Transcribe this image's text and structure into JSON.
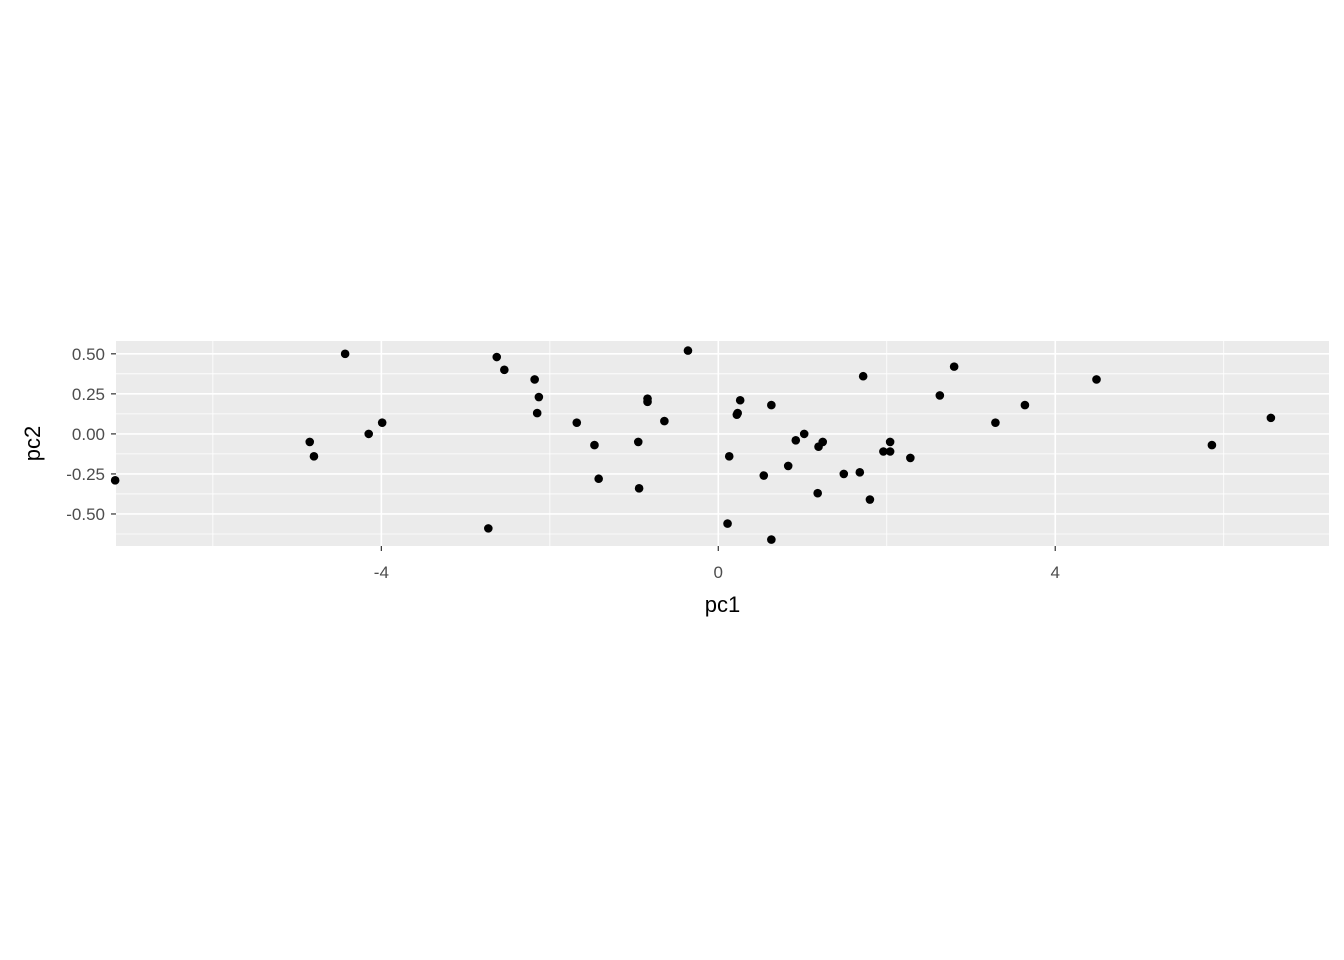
{
  "chart_data": {
    "type": "scatter",
    "title": "",
    "xlabel": "pc1",
    "ylabel": "pc2",
    "xlim": [
      -7.15,
      7.25
    ],
    "ylim": [
      -0.7,
      0.58
    ],
    "x_ticks": [
      -4,
      0,
      4
    ],
    "x_tick_labels": [
      "-4",
      "0",
      "4"
    ],
    "y_ticks": [
      -0.5,
      -0.25,
      0,
      0.25,
      0.5
    ],
    "y_tick_labels": [
      "-0.50",
      "-0.25",
      "0.00",
      "0.25",
      "0.50"
    ],
    "grid": true,
    "point_color": "#000000",
    "panel_background": "#ebebeb",
    "gridline_color": "#ffffff",
    "points": [
      {
        "x": -7.16,
        "y": -0.29
      },
      {
        "x": -4.85,
        "y": -0.05
      },
      {
        "x": -4.8,
        "y": -0.14
      },
      {
        "x": -4.43,
        "y": 0.5
      },
      {
        "x": -4.15,
        "y": 0.0
      },
      {
        "x": -3.99,
        "y": 0.07
      },
      {
        "x": -2.73,
        "y": -0.59
      },
      {
        "x": -2.63,
        "y": 0.48
      },
      {
        "x": -2.54,
        "y": 0.4
      },
      {
        "x": -2.18,
        "y": 0.34
      },
      {
        "x": -2.13,
        "y": 0.23
      },
      {
        "x": -2.15,
        "y": 0.13
      },
      {
        "x": -1.68,
        "y": 0.07
      },
      {
        "x": -1.47,
        "y": -0.07
      },
      {
        "x": -1.42,
        "y": -0.28
      },
      {
        "x": -0.95,
        "y": -0.05
      },
      {
        "x": -0.94,
        "y": -0.34
      },
      {
        "x": -0.84,
        "y": 0.22
      },
      {
        "x": -0.84,
        "y": 0.2
      },
      {
        "x": -0.64,
        "y": 0.08
      },
      {
        "x": -0.36,
        "y": 0.52
      },
      {
        "x": 0.11,
        "y": -0.56
      },
      {
        "x": 0.13,
        "y": -0.14
      },
      {
        "x": 0.22,
        "y": 0.12
      },
      {
        "x": 0.23,
        "y": 0.13
      },
      {
        "x": 0.26,
        "y": 0.21
      },
      {
        "x": 0.54,
        "y": -0.26
      },
      {
        "x": 0.63,
        "y": 0.18
      },
      {
        "x": 0.63,
        "y": -0.66
      },
      {
        "x": 0.83,
        "y": -0.2
      },
      {
        "x": 0.92,
        "y": -0.04
      },
      {
        "x": 1.02,
        "y": 0.0
      },
      {
        "x": 1.18,
        "y": -0.37
      },
      {
        "x": 1.19,
        "y": -0.08
      },
      {
        "x": 1.24,
        "y": -0.05
      },
      {
        "x": 1.49,
        "y": -0.25
      },
      {
        "x": 1.68,
        "y": -0.24
      },
      {
        "x": 1.72,
        "y": 0.36
      },
      {
        "x": 1.8,
        "y": -0.41
      },
      {
        "x": 1.96,
        "y": -0.11
      },
      {
        "x": 2.04,
        "y": -0.11
      },
      {
        "x": 2.04,
        "y": -0.05
      },
      {
        "x": 2.28,
        "y": -0.15
      },
      {
        "x": 2.63,
        "y": 0.24
      },
      {
        "x": 2.8,
        "y": 0.42
      },
      {
        "x": 3.29,
        "y": 0.07
      },
      {
        "x": 3.64,
        "y": 0.18
      },
      {
        "x": 4.49,
        "y": 0.34
      },
      {
        "x": 5.86,
        "y": -0.07
      },
      {
        "x": 6.56,
        "y": 0.1
      }
    ]
  }
}
